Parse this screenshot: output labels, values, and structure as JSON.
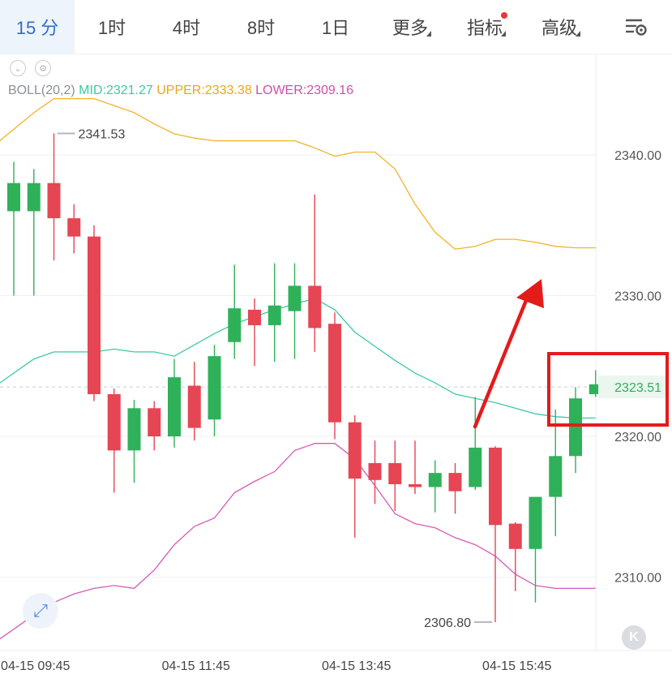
{
  "tabs": [
    {
      "label": "15 分",
      "active": true
    },
    {
      "label": "1时"
    },
    {
      "label": "4时"
    },
    {
      "label": "8时"
    },
    {
      "label": "1日"
    },
    {
      "label": "更多"
    },
    {
      "label": "指标"
    },
    {
      "label": "高级"
    }
  ],
  "legend": {
    "name": "BOLL(20,2)",
    "mid": "MID:2321.27",
    "upper": "UPPER:2333.38",
    "lower": "LOWER:2309.16"
  },
  "colors": {
    "up": "#2fb15a",
    "down": "#e64553",
    "mid": "#3cc9a6",
    "upper": "#f0b429",
    "lower": "#d65bb3",
    "accent": "#2f6fc9",
    "annotation": "#e31b1b"
  },
  "icons": [
    "settings-icon",
    "collapse-icon",
    "gear-icon",
    "expand-icon",
    "back-icon"
  ],
  "chart_data": {
    "type": "candlestick",
    "title": "",
    "ylim": [
      2305.5,
      2346.2
    ],
    "yticks": [
      2340.0,
      2330.0,
      2320.0,
      2310.0
    ],
    "ytick_labels": [
      "2340.00",
      "2330.00",
      "2320.00",
      "2310.00"
    ],
    "xtick_labels": [
      "04-15 09:45",
      "04-15 11:45",
      "04-15 13:45",
      "04-15 15:45"
    ],
    "xtick_indices": [
      1,
      9,
      17,
      25
    ],
    "current_price": 2323.51,
    "current_price_label": "2323.51",
    "high_label": "2341.53",
    "low_label": "2306.80",
    "candles": [
      {
        "o": 2336.0,
        "c": 2338.0,
        "h": 2339.5,
        "l": 2330.0
      },
      {
        "o": 2336.0,
        "c": 2338.0,
        "h": 2339.0,
        "l": 2330.0
      },
      {
        "o": 2338.0,
        "c": 2335.5,
        "h": 2341.53,
        "l": 2332.5
      },
      {
        "o": 2335.5,
        "c": 2334.2,
        "h": 2336.5,
        "l": 2333.0
      },
      {
        "o": 2334.2,
        "c": 2323.0,
        "h": 2335.0,
        "l": 2322.5
      },
      {
        "o": 2323.0,
        "c": 2319.0,
        "h": 2323.4,
        "l": 2316.0
      },
      {
        "o": 2319.0,
        "c": 2322.0,
        "h": 2322.6,
        "l": 2316.7
      },
      {
        "o": 2322.0,
        "c": 2320.0,
        "h": 2322.5,
        "l": 2319.0
      },
      {
        "o": 2320.0,
        "c": 2324.2,
        "h": 2325.5,
        "l": 2319.2
      },
      {
        "o": 2323.6,
        "c": 2320.6,
        "h": 2325.3,
        "l": 2319.7
      },
      {
        "o": 2321.2,
        "c": 2325.7,
        "h": 2326.5,
        "l": 2320.0
      },
      {
        "o": 2326.7,
        "c": 2329.1,
        "h": 2332.2,
        "l": 2325.5
      },
      {
        "o": 2329.0,
        "c": 2327.9,
        "h": 2329.8,
        "l": 2325.0
      },
      {
        "o": 2327.9,
        "c": 2329.3,
        "h": 2332.3,
        "l": 2325.3
      },
      {
        "o": 2328.9,
        "c": 2330.7,
        "h": 2332.3,
        "l": 2325.5
      },
      {
        "o": 2330.7,
        "c": 2327.7,
        "h": 2337.2,
        "l": 2326.0
      },
      {
        "o": 2328.0,
        "c": 2321.0,
        "h": 2328.8,
        "l": 2319.8
      },
      {
        "o": 2321.0,
        "c": 2317.0,
        "h": 2321.5,
        "l": 2312.8
      },
      {
        "o": 2318.1,
        "c": 2316.9,
        "h": 2319.7,
        "l": 2315.2
      },
      {
        "o": 2318.1,
        "c": 2316.6,
        "h": 2319.7,
        "l": 2314.7
      },
      {
        "o": 2316.6,
        "c": 2316.4,
        "h": 2319.7,
        "l": 2315.9
      },
      {
        "o": 2316.4,
        "c": 2317.4,
        "h": 2318.3,
        "l": 2314.6
      },
      {
        "o": 2317.4,
        "c": 2316.1,
        "h": 2318.1,
        "l": 2314.5
      },
      {
        "o": 2316.4,
        "c": 2319.2,
        "h": 2322.8,
        "l": 2316.2
      },
      {
        "o": 2319.2,
        "c": 2313.7,
        "h": 2319.3,
        "l": 2306.8
      },
      {
        "o": 2313.8,
        "c": 2312.0,
        "h": 2313.9,
        "l": 2309.0
      },
      {
        "o": 2312.0,
        "c": 2315.7,
        "h": 2315.7,
        "l": 2308.2
      },
      {
        "o": 2315.7,
        "c": 2318.6,
        "h": 2321.9,
        "l": 2312.9
      },
      {
        "o": 2318.6,
        "c": 2322.7,
        "h": 2323.5,
        "l": 2317.4
      },
      {
        "o": 2323.0,
        "c": 2323.7,
        "h": 2324.7,
        "l": 2322.8
      }
    ],
    "series": [
      {
        "name": "MID",
        "values": [
          2323.8,
          2325.5,
          2326.0,
          2326.0,
          2326.0,
          2326.2,
          2326.0,
          2326.0,
          2325.7,
          2326.5,
          2327.3,
          2328.0,
          2328.5,
          2329.0,
          2329.4,
          2329.8,
          2329.0,
          2327.4,
          2326.4,
          2325.4,
          2324.5,
          2323.8,
          2323.0,
          2322.7,
          2322.4,
          2322.0,
          2321.6,
          2321.4,
          2321.3,
          2321.3
        ]
      },
      {
        "name": "UPPER",
        "values": [
          2341.0,
          2343.0,
          2344.0,
          2344.0,
          2344.0,
          2343.5,
          2343.0,
          2342.2,
          2341.5,
          2341.2,
          2341.0,
          2341.0,
          2341.0,
          2341.0,
          2341.0,
          2340.5,
          2339.9,
          2340.2,
          2340.2,
          2339.0,
          2336.5,
          2334.5,
          2333.3,
          2333.5,
          2334.0,
          2334.0,
          2333.8,
          2333.5,
          2333.4,
          2333.4
        ]
      },
      {
        "name": "LOWER",
        "values": [
          2305.6,
          2307.3,
          2308.2,
          2308.8,
          2309.2,
          2309.4,
          2309.2,
          2310.5,
          2312.3,
          2313.6,
          2314.2,
          2316.0,
          2316.8,
          2317.5,
          2319.0,
          2319.5,
          2319.5,
          2318.4,
          2316.5,
          2314.5,
          2313.8,
          2313.5,
          2312.8,
          2312.3,
          2311.5,
          2310.2,
          2309.4,
          2309.2,
          2309.2,
          2309.2
        ]
      }
    ]
  }
}
